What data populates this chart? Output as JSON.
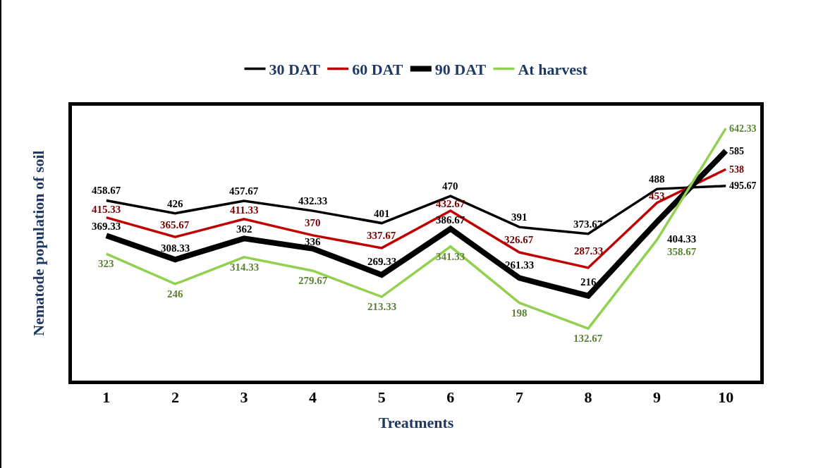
{
  "chart_data": {
    "type": "line",
    "xlabel": "Treatments",
    "ylabel": "Nematode population of soil",
    "categories": [
      "1",
      "2",
      "3",
      "4",
      "5",
      "6",
      "7",
      "8",
      "9",
      "10"
    ],
    "series": [
      {
        "name": "30 DAT",
        "color": "#000000",
        "values": [
          458.67,
          426,
          457.67,
          432.33,
          401,
          470,
          391,
          373.67,
          488,
          495.67
        ]
      },
      {
        "name": "60 DAT",
        "color": "#c00000",
        "values": [
          415.33,
          365.67,
          411.33,
          370,
          337.67,
          432.67,
          326.67,
          287.33,
          453,
          538
        ]
      },
      {
        "name": "90 DAT",
        "color": "#000000",
        "values": [
          369.33,
          308.33,
          362,
          336,
          269.33,
          386.67,
          261.33,
          216,
          404.33,
          585
        ]
      },
      {
        "name": "At harvest",
        "color": "#92d050",
        "values": [
          323,
          246,
          314.33,
          279.67,
          213.33,
          341.33,
          198,
          132.67,
          358.67,
          642.33
        ]
      }
    ],
    "ylim": [
      0,
      700
    ],
    "data_labels": true,
    "legend": "top",
    "grid": false,
    "marker": "none",
    "line_style": "solid",
    "tick_labels": "x"
  }
}
